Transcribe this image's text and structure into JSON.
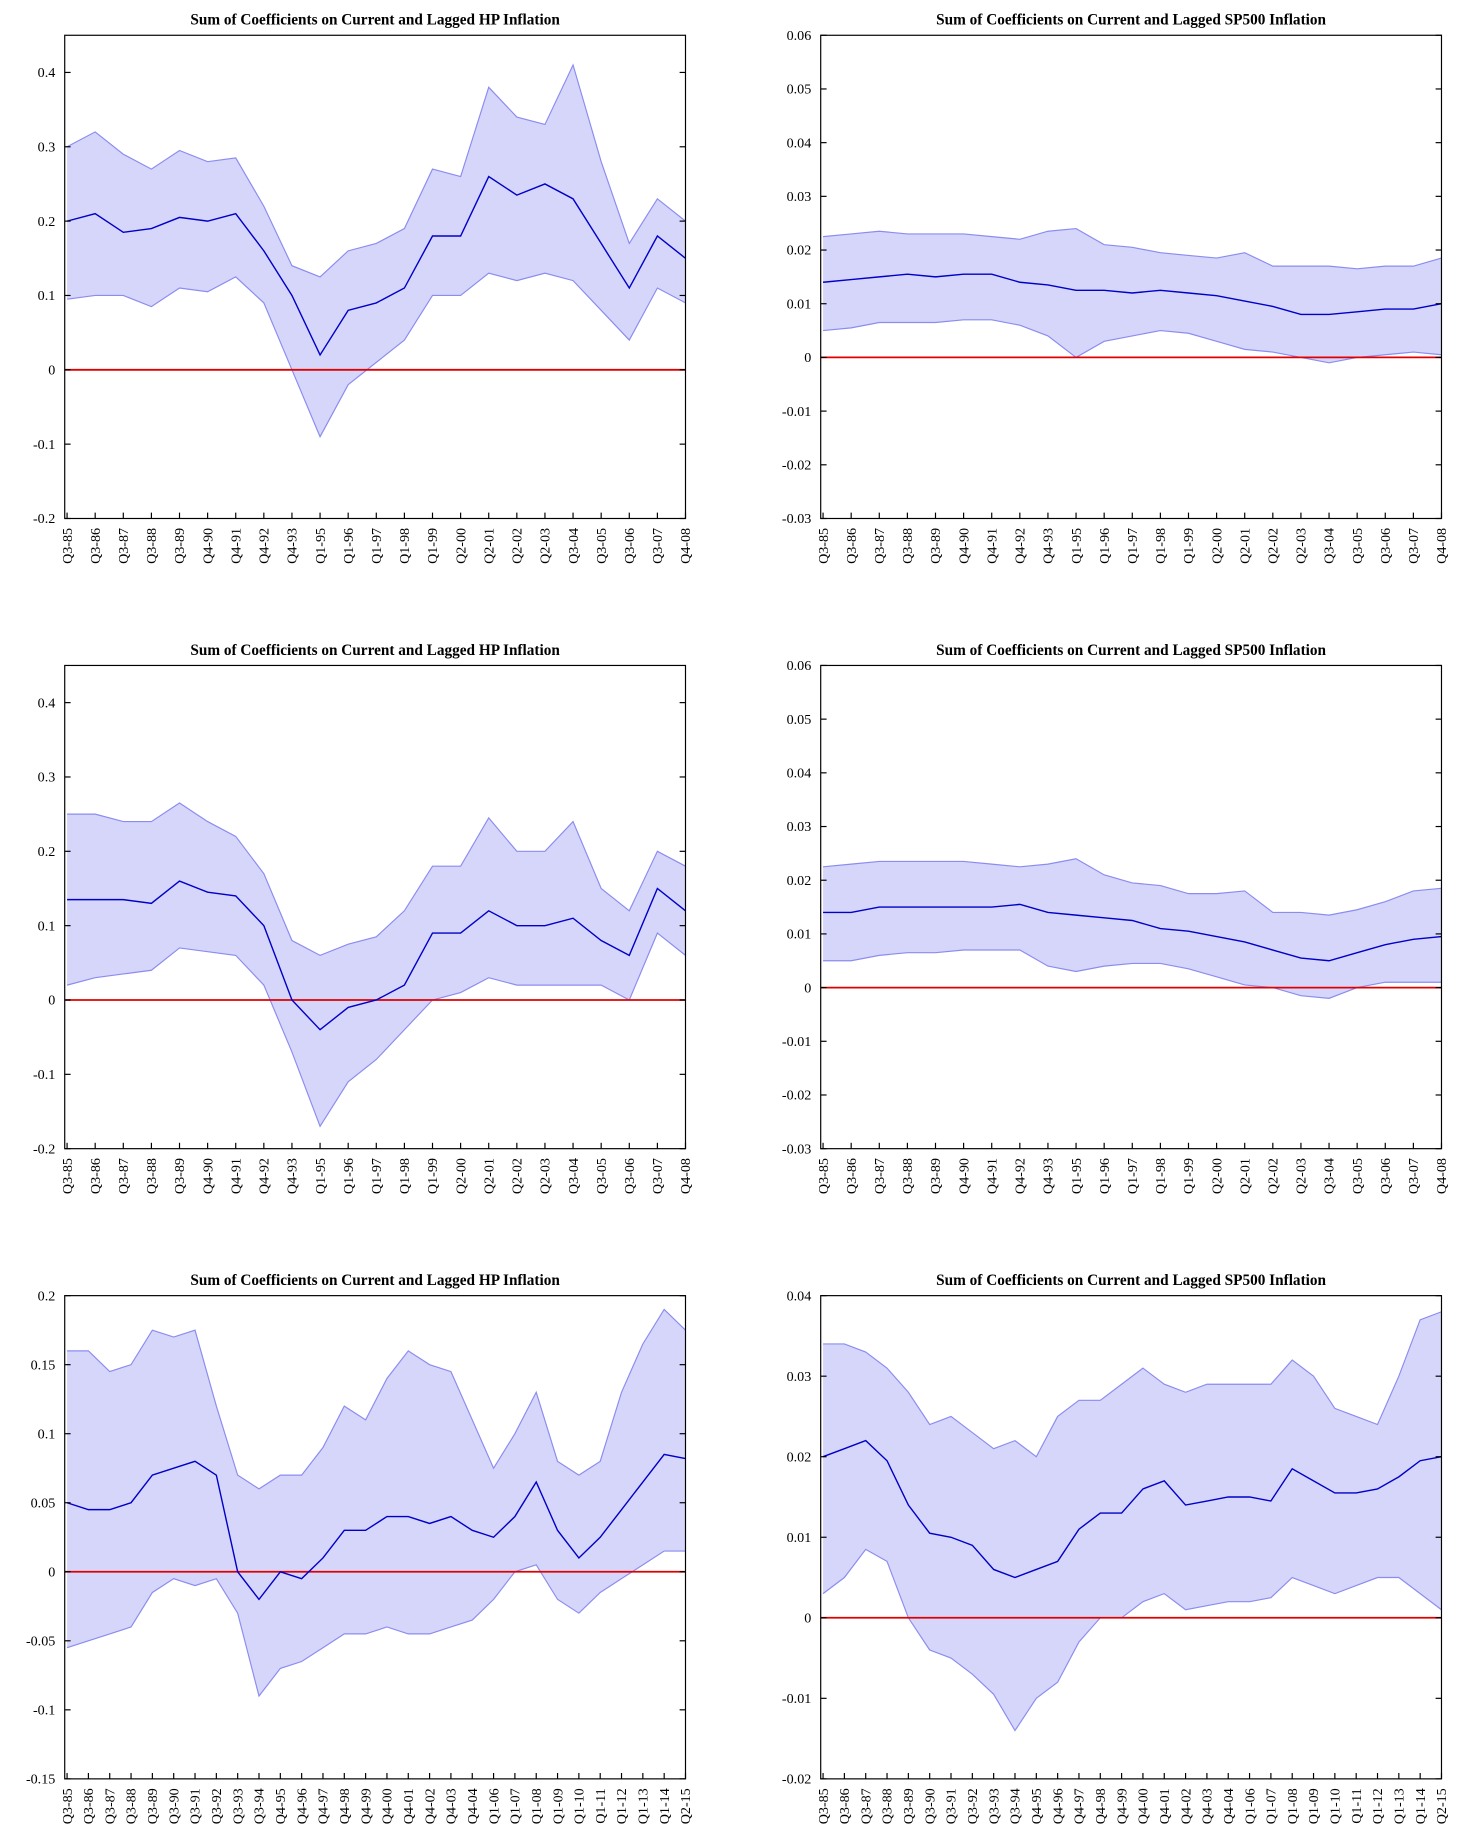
{
  "chart_data": [
    {
      "type": "line",
      "title": "Sum of Coefficients on Current and Lagged HP Inflation",
      "categories": [
        "Q3-85",
        "Q3-86",
        "Q3-87",
        "Q3-88",
        "Q3-89",
        "Q4-90",
        "Q4-91",
        "Q4-92",
        "Q4-93",
        "Q1-95",
        "Q1-96",
        "Q1-97",
        "Q1-98",
        "Q1-99",
        "Q2-00",
        "Q2-01",
        "Q2-02",
        "Q2-03",
        "Q3-04",
        "Q3-05",
        "Q3-06",
        "Q3-07",
        "Q4-08"
      ],
      "series": [
        {
          "color": "#0000c8",
          "values": [
            0.2,
            0.21,
            0.185,
            0.19,
            0.205,
            0.2,
            0.21,
            0.16,
            0.1,
            0.02,
            0.08,
            0.09,
            0.11,
            0.18,
            0.18,
            0.26,
            0.235,
            0.25,
            0.23,
            0.17,
            0.11,
            0.18,
            0.15
          ]
        }
      ],
      "band": {
        "color": "#d6d6fb",
        "edge_color": "#8c8cf0",
        "lower": [
          0.095,
          0.1,
          0.1,
          0.085,
          0.11,
          0.105,
          0.125,
          0.09,
          0.0,
          -0.09,
          -0.02,
          0.01,
          0.04,
          0.1,
          0.1,
          0.13,
          0.12,
          0.13,
          0.12,
          0.08,
          0.04,
          0.11,
          0.09
        ],
        "upper": [
          0.3,
          0.32,
          0.29,
          0.27,
          0.295,
          0.28,
          0.285,
          0.22,
          0.14,
          0.125,
          0.16,
          0.17,
          0.19,
          0.27,
          0.26,
          0.38,
          0.34,
          0.33,
          0.41,
          0.28,
          0.17,
          0.23,
          0.2
        ]
      },
      "reference_line": {
        "value": 0,
        "color": "#e00000"
      },
      "ylim": [
        -0.2,
        0.45
      ],
      "yticks": [
        -0.2,
        -0.1,
        0,
        0.1,
        0.2,
        0.3,
        0.4
      ]
    },
    {
      "type": "line",
      "title": "Sum of Coefficients on Current and Lagged SP500 Inflation",
      "categories": [
        "Q3-85",
        "Q3-86",
        "Q3-87",
        "Q3-88",
        "Q3-89",
        "Q4-90",
        "Q4-91",
        "Q4-92",
        "Q4-93",
        "Q1-95",
        "Q1-96",
        "Q1-97",
        "Q1-98",
        "Q1-99",
        "Q2-00",
        "Q2-01",
        "Q2-02",
        "Q2-03",
        "Q3-04",
        "Q3-05",
        "Q3-06",
        "Q3-07",
        "Q4-08"
      ],
      "series": [
        {
          "color": "#0000c8",
          "values": [
            0.014,
            0.0145,
            0.015,
            0.0155,
            0.015,
            0.0155,
            0.0155,
            0.014,
            0.0135,
            0.0125,
            0.0125,
            0.012,
            0.0125,
            0.012,
            0.0115,
            0.0105,
            0.0095,
            0.008,
            0.008,
            0.0085,
            0.009,
            0.009,
            0.01
          ]
        }
      ],
      "band": {
        "color": "#d6d6fb",
        "edge_color": "#8c8cf0",
        "lower": [
          0.005,
          0.0055,
          0.0065,
          0.0065,
          0.0065,
          0.007,
          0.007,
          0.006,
          0.004,
          0.0,
          0.003,
          0.004,
          0.005,
          0.0045,
          0.003,
          0.0015,
          0.001,
          0.0,
          -0.001,
          0.0,
          0.0005,
          0.001,
          0.0005
        ],
        "upper": [
          0.0225,
          0.023,
          0.0235,
          0.023,
          0.023,
          0.023,
          0.0225,
          0.022,
          0.0235,
          0.024,
          0.021,
          0.0205,
          0.0195,
          0.019,
          0.0185,
          0.0195,
          0.017,
          0.017,
          0.017,
          0.0165,
          0.017,
          0.017,
          0.0185
        ]
      },
      "reference_line": {
        "value": 0,
        "color": "#e00000"
      },
      "ylim": [
        -0.03,
        0.06
      ],
      "yticks": [
        -0.03,
        -0.02,
        -0.01,
        0,
        0.01,
        0.02,
        0.03,
        0.04,
        0.05,
        0.06
      ]
    },
    {
      "type": "line",
      "title": "Sum of Coefficients on Current and Lagged HP Inflation",
      "categories": [
        "Q3-85",
        "Q3-86",
        "Q3-87",
        "Q3-88",
        "Q3-89",
        "Q4-90",
        "Q4-91",
        "Q4-92",
        "Q4-93",
        "Q1-95",
        "Q1-96",
        "Q1-97",
        "Q1-98",
        "Q1-99",
        "Q2-00",
        "Q2-01",
        "Q2-02",
        "Q2-03",
        "Q3-04",
        "Q3-05",
        "Q3-06",
        "Q3-07",
        "Q4-08"
      ],
      "series": [
        {
          "color": "#0000c8",
          "values": [
            0.135,
            0.135,
            0.135,
            0.13,
            0.16,
            0.145,
            0.14,
            0.1,
            0.0,
            -0.04,
            -0.01,
            0.0,
            0.02,
            0.09,
            0.09,
            0.12,
            0.1,
            0.1,
            0.11,
            0.08,
            0.06,
            0.15,
            0.12
          ]
        }
      ],
      "band": {
        "color": "#d6d6fb",
        "edge_color": "#8c8cf0",
        "lower": [
          0.02,
          0.03,
          0.035,
          0.04,
          0.07,
          0.065,
          0.06,
          0.02,
          -0.07,
          -0.17,
          -0.11,
          -0.08,
          -0.04,
          0.0,
          0.01,
          0.03,
          0.02,
          0.02,
          0.02,
          0.02,
          0.0,
          0.09,
          0.06
        ],
        "upper": [
          0.25,
          0.25,
          0.24,
          0.24,
          0.265,
          0.24,
          0.22,
          0.17,
          0.08,
          0.06,
          0.075,
          0.085,
          0.12,
          0.18,
          0.18,
          0.245,
          0.2,
          0.2,
          0.24,
          0.15,
          0.12,
          0.2,
          0.18
        ]
      },
      "reference_line": {
        "value": 0,
        "color": "#e00000"
      },
      "ylim": [
        -0.2,
        0.45
      ],
      "yticks": [
        -0.2,
        -0.1,
        0,
        0.1,
        0.2,
        0.3,
        0.4
      ]
    },
    {
      "type": "line",
      "title": "Sum of Coefficients on Current and Lagged SP500 Inflation",
      "categories": [
        "Q3-85",
        "Q3-86",
        "Q3-87",
        "Q3-88",
        "Q3-89",
        "Q4-90",
        "Q4-91",
        "Q4-92",
        "Q4-93",
        "Q1-95",
        "Q1-96",
        "Q1-97",
        "Q1-98",
        "Q1-99",
        "Q2-00",
        "Q2-01",
        "Q2-02",
        "Q2-03",
        "Q3-04",
        "Q3-05",
        "Q3-06",
        "Q3-07",
        "Q4-08"
      ],
      "series": [
        {
          "color": "#0000c8",
          "values": [
            0.014,
            0.014,
            0.015,
            0.015,
            0.015,
            0.015,
            0.015,
            0.0155,
            0.014,
            0.0135,
            0.013,
            0.0125,
            0.011,
            0.0105,
            0.0095,
            0.0085,
            0.007,
            0.0055,
            0.005,
            0.0065,
            0.008,
            0.009,
            0.0095
          ]
        }
      ],
      "band": {
        "color": "#d6d6fb",
        "edge_color": "#8c8cf0",
        "lower": [
          0.005,
          0.005,
          0.006,
          0.0065,
          0.0065,
          0.007,
          0.007,
          0.007,
          0.004,
          0.003,
          0.004,
          0.0045,
          0.0045,
          0.0035,
          0.002,
          0.0005,
          0.0,
          -0.0015,
          -0.002,
          0.0,
          0.001,
          0.001,
          0.001
        ],
        "upper": [
          0.0225,
          0.023,
          0.0235,
          0.0235,
          0.0235,
          0.0235,
          0.023,
          0.0225,
          0.023,
          0.024,
          0.021,
          0.0195,
          0.019,
          0.0175,
          0.0175,
          0.018,
          0.014,
          0.014,
          0.0135,
          0.0145,
          0.016,
          0.018,
          0.0185
        ]
      },
      "reference_line": {
        "value": 0,
        "color": "#e00000"
      },
      "ylim": [
        -0.03,
        0.06
      ],
      "yticks": [
        -0.03,
        -0.02,
        -0.01,
        0,
        0.01,
        0.02,
        0.03,
        0.04,
        0.05,
        0.06
      ]
    },
    {
      "type": "line",
      "title": "Sum of Coefficients on Current and Lagged HP Inflation",
      "categories": [
        "Q3-85",
        "Q3-86",
        "Q3-87",
        "Q3-88",
        "Q3-89",
        "Q3-90",
        "Q3-91",
        "Q3-92",
        "Q3-93",
        "Q3-94",
        "Q4-95",
        "Q4-96",
        "Q4-97",
        "Q4-98",
        "Q4-99",
        "Q4-00",
        "Q4-01",
        "Q4-02",
        "Q4-03",
        "Q4-04",
        "Q1-06",
        "Q1-07",
        "Q1-08",
        "Q1-09",
        "Q1-10",
        "Q1-11",
        "Q1-12",
        "Q1-13",
        "Q1-14",
        "Q2-15"
      ],
      "series": [
        {
          "color": "#0000c8",
          "values": [
            0.05,
            0.045,
            0.045,
            0.05,
            0.07,
            0.075,
            0.08,
            0.07,
            0.0,
            -0.02,
            0.0,
            -0.005,
            0.01,
            0.03,
            0.03,
            0.04,
            0.04,
            0.035,
            0.04,
            0.03,
            0.025,
            0.04,
            0.065,
            0.03,
            0.01,
            0.025,
            0.045,
            0.065,
            0.085,
            0.082
          ]
        }
      ],
      "band": {
        "color": "#d6d6fb",
        "edge_color": "#8c8cf0",
        "lower": [
          -0.055,
          -0.05,
          -0.045,
          -0.04,
          -0.015,
          -0.005,
          -0.01,
          -0.005,
          -0.03,
          -0.09,
          -0.07,
          -0.065,
          -0.055,
          -0.045,
          -0.045,
          -0.04,
          -0.045,
          -0.045,
          -0.04,
          -0.035,
          -0.02,
          0.0,
          0.005,
          -0.02,
          -0.03,
          -0.015,
          -0.005,
          0.005,
          0.015,
          0.015
        ],
        "upper": [
          0.16,
          0.16,
          0.145,
          0.15,
          0.175,
          0.17,
          0.175,
          0.12,
          0.07,
          0.06,
          0.07,
          0.07,
          0.09,
          0.12,
          0.11,
          0.14,
          0.16,
          0.15,
          0.145,
          0.11,
          0.075,
          0.1,
          0.13,
          0.08,
          0.07,
          0.08,
          0.13,
          0.165,
          0.19,
          0.175
        ]
      },
      "reference_line": {
        "value": 0,
        "color": "#e00000"
      },
      "ylim": [
        -0.15,
        0.2
      ],
      "yticks": [
        -0.15,
        -0.1,
        -0.05,
        0,
        0.05,
        0.1,
        0.15,
        0.2
      ]
    },
    {
      "type": "line",
      "title": "Sum of Coefficients on Current and Lagged SP500 Inflation",
      "categories": [
        "Q3-85",
        "Q3-86",
        "Q3-87",
        "Q3-88",
        "Q3-89",
        "Q3-90",
        "Q3-91",
        "Q3-92",
        "Q3-93",
        "Q3-94",
        "Q4-95",
        "Q4-96",
        "Q4-97",
        "Q4-98",
        "Q4-99",
        "Q4-00",
        "Q4-01",
        "Q4-02",
        "Q4-03",
        "Q4-04",
        "Q1-06",
        "Q1-07",
        "Q1-08",
        "Q1-09",
        "Q1-10",
        "Q1-11",
        "Q1-12",
        "Q1-13",
        "Q1-14",
        "Q2-15"
      ],
      "series": [
        {
          "color": "#0000c8",
          "values": [
            0.02,
            0.021,
            0.022,
            0.0195,
            0.014,
            0.0105,
            0.01,
            0.009,
            0.006,
            0.005,
            0.006,
            0.007,
            0.011,
            0.013,
            0.013,
            0.016,
            0.017,
            0.014,
            0.0145,
            0.015,
            0.015,
            0.0145,
            0.0185,
            0.017,
            0.0155,
            0.0155,
            0.016,
            0.0175,
            0.0195,
            0.02
          ]
        }
      ],
      "band": {
        "color": "#d6d6fb",
        "edge_color": "#8c8cf0",
        "lower": [
          0.003,
          0.005,
          0.0085,
          0.007,
          0.0,
          -0.004,
          -0.005,
          -0.007,
          -0.0095,
          -0.014,
          -0.01,
          -0.008,
          -0.003,
          0.0,
          0.0,
          0.002,
          0.003,
          0.001,
          0.0015,
          0.002,
          0.002,
          0.0025,
          0.005,
          0.004,
          0.003,
          0.004,
          0.005,
          0.005,
          0.003,
          0.001
        ],
        "upper": [
          0.034,
          0.034,
          0.033,
          0.031,
          0.028,
          0.024,
          0.025,
          0.023,
          0.021,
          0.022,
          0.02,
          0.025,
          0.027,
          0.027,
          0.029,
          0.031,
          0.029,
          0.028,
          0.029,
          0.029,
          0.029,
          0.029,
          0.032,
          0.03,
          0.026,
          0.025,
          0.024,
          0.03,
          0.037,
          0.038
        ]
      },
      "reference_line": {
        "value": 0,
        "color": "#e00000"
      },
      "ylim": [
        -0.02,
        0.04
      ],
      "yticks": [
        -0.02,
        -0.01,
        0,
        0.01,
        0.02,
        0.03,
        0.04
      ]
    }
  ]
}
